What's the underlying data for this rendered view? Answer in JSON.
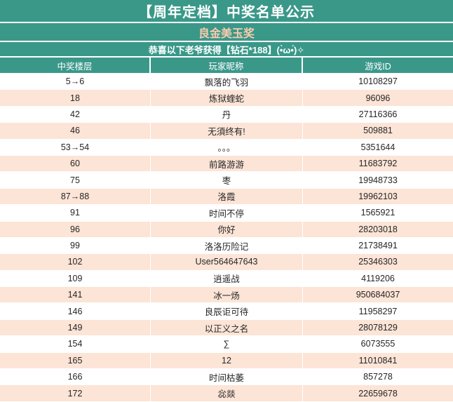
{
  "header": {
    "title": "【周年定档】中奖名单公示",
    "prize_name": "良金美玉奖",
    "congrats": "恭喜以下老爷获得【钻石*188】(•̀ω•́)✧"
  },
  "table": {
    "columns": [
      "中奖楼层",
      "玩家昵称",
      "游戏ID"
    ],
    "rows": [
      [
        "5→6",
        "飘落的飞羽",
        "10108297"
      ],
      [
        "18",
        "炼狱蝰蛇",
        "96096"
      ],
      [
        "42",
        "丹",
        "27116366"
      ],
      [
        "46",
        "无須终有!",
        "509881"
      ],
      [
        "53→54",
        "。。。",
        "5351644"
      ],
      [
        "60",
        "前路游游",
        "11683792"
      ],
      [
        "75",
        "枣",
        "19948733"
      ],
      [
        "87→88",
        "洛霞",
        "19962103"
      ],
      [
        "91",
        "时间不停",
        "1565921"
      ],
      [
        "96",
        "你好",
        "28203018"
      ],
      [
        "99",
        "洛洛历险记",
        "21738491"
      ],
      [
        "102",
        "User564647643",
        "25346303"
      ],
      [
        "109",
        "逍遥战",
        "4119206"
      ],
      [
        "141",
        "冰一炀",
        "950684037"
      ],
      [
        "146",
        "良辰讵可待",
        "11958297"
      ],
      [
        "149",
        "以正义之名",
        "28078129"
      ],
      [
        "154",
        "∑",
        "6073555"
      ],
      [
        "165",
        "12",
        "11010841"
      ],
      [
        "166",
        "时间枯萎",
        "857278"
      ],
      [
        "172",
        "惢燚",
        "22659678"
      ]
    ]
  },
  "colors": {
    "header_teal": "#3A9889",
    "row_alt_peach": "#FCE4D6",
    "prize_text_orange": "#F8CBAD",
    "header_text": "#FFFFFF",
    "body_text": "#262626"
  }
}
